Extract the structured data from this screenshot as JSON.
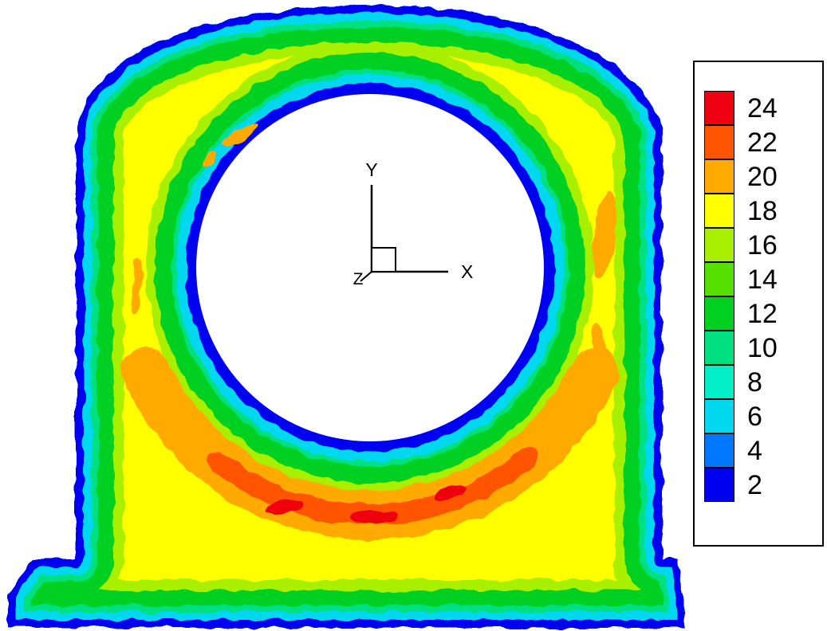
{
  "chart_data": {
    "type": "heatmap",
    "subtype": "filled-contour-plot",
    "title": "",
    "geometry": "Pillow-block bearing housing cross-section with central circular bore; hot crescent-shaped region beneath the bore",
    "field_levels": [
      2,
      4,
      6,
      8,
      10,
      12,
      14,
      16,
      18,
      20,
      22,
      24
    ],
    "legend": {
      "position": "right",
      "entries": [
        {
          "label": "24",
          "color": "#EE0011"
        },
        {
          "label": "22",
          "color": "#FF5500"
        },
        {
          "label": "20",
          "color": "#FFAA00"
        },
        {
          "label": "18",
          "color": "#FFFF00"
        },
        {
          "label": "16",
          "color": "#A8F000"
        },
        {
          "label": "14",
          "color": "#58E000"
        },
        {
          "label": "12",
          "color": "#00D020"
        },
        {
          "label": "10",
          "color": "#00E080"
        },
        {
          "label": "8",
          "color": "#00EEC8"
        },
        {
          "label": "6",
          "color": "#00D8F0"
        },
        {
          "label": "4",
          "color": "#0077FF"
        },
        {
          "label": "2",
          "color": "#0000F0"
        }
      ]
    },
    "axes_indicator": {
      "x_label": "X",
      "y_label": "Y",
      "z_label": "Z"
    },
    "palette": {
      "white": "#FFFFFF",
      "blue": "#0000F0",
      "azure": "#0077FF",
      "cyan": "#00D8F0",
      "teal": "#00EEC8",
      "spring": "#00E080",
      "green": "#00D020",
      "lightgreen": "#58E000",
      "chartreuse": "#A8F000",
      "yellow": "#FFFF00",
      "orange": "#FFAA00",
      "orangered": "#FF5500",
      "red": "#EE0011"
    },
    "bands_outer_to_inner": [
      "blue",
      "cyan",
      "spring",
      "green",
      "chartreuse",
      "yellow"
    ],
    "bore_rings_inner_to_outer": [
      "white",
      "blue",
      "cyan",
      "spring",
      "green",
      "chartreuse"
    ],
    "hot_region": "orange and orange-red crescent below the bore with small red cores"
  }
}
